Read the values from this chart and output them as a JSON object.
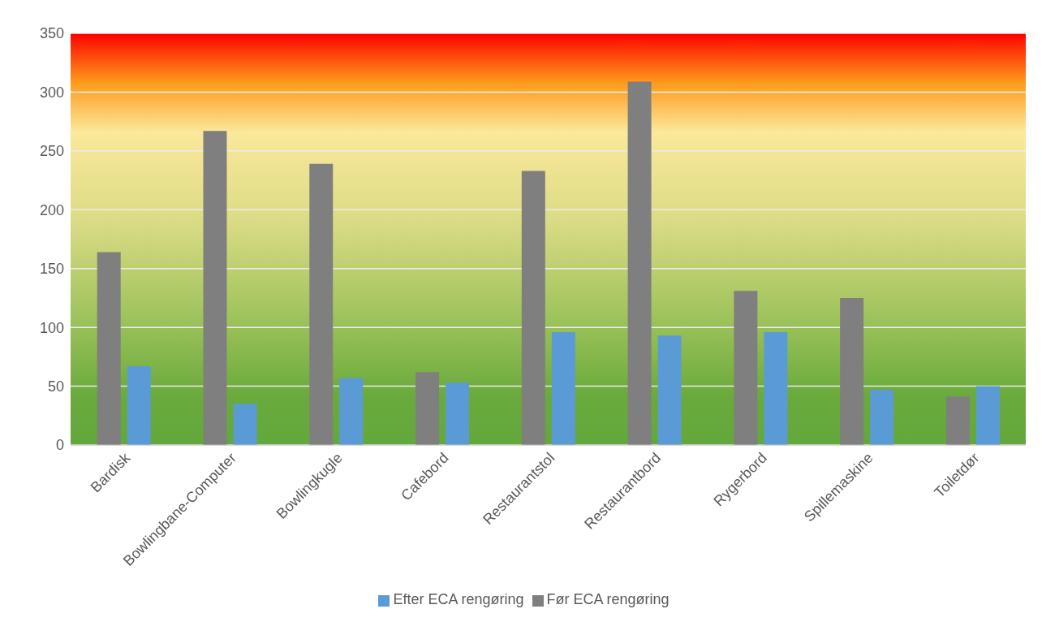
{
  "chart_data": {
    "type": "bar",
    "categories": [
      "Bardisk",
      "Bowlingbane-Computer",
      "Bowlingkugle",
      "Cafebord",
      "Restaurantstol",
      "Restaurantbord",
      "Rygerbord",
      "Spillemaskine",
      "Toiletdør"
    ],
    "series": [
      {
        "name": "Før ECA rengøring",
        "color": "#7f7f7f",
        "values": [
          164,
          267,
          239,
          62,
          233,
          309,
          131,
          125,
          41
        ]
      },
      {
        "name": "Efter ECA rengøring",
        "color": "#5b9bd5",
        "values": [
          67,
          35,
          57,
          53,
          96,
          93,
          96,
          47,
          50
        ]
      }
    ],
    "ylim": [
      0,
      350
    ],
    "yticks": [
      0,
      50,
      100,
      150,
      200,
      250,
      300,
      350
    ],
    "grid": "y",
    "legend": "bottom"
  }
}
